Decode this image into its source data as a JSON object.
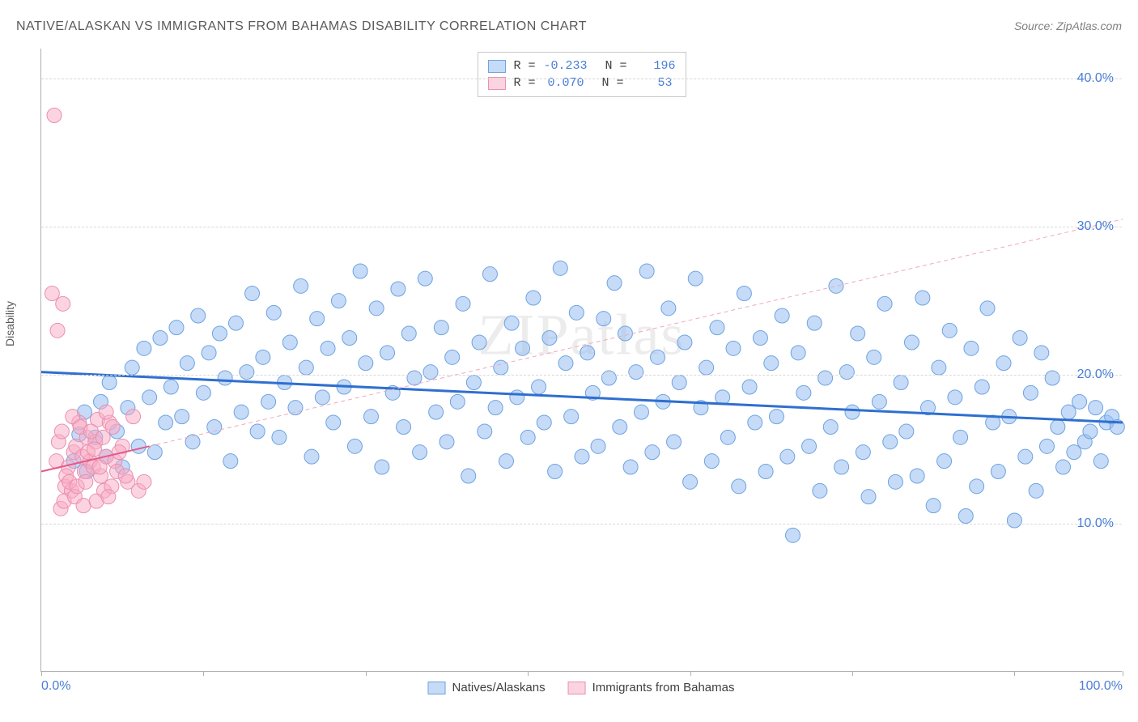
{
  "title": "NATIVE/ALASKAN VS IMMIGRANTS FROM BAHAMAS DISABILITY CORRELATION CHART",
  "source": "Source: ZipAtlas.com",
  "watermark": "ZIPatlas",
  "ylabel": "Disability",
  "chart": {
    "type": "scatter",
    "xlim": [
      0,
      100
    ],
    "ylim": [
      0,
      42
    ],
    "x_ticks": [
      0,
      15,
      30,
      45,
      60,
      75,
      90,
      100
    ],
    "x_tick_labels": {
      "0": "0.0%",
      "100": "100.0%"
    },
    "y_gridlines": [
      10,
      20,
      30,
      40
    ],
    "y_tick_labels": [
      "10.0%",
      "20.0%",
      "30.0%",
      "40.0%"
    ],
    "grid_color": "#d8d8d8",
    "axis_color": "#b0b0b0",
    "tick_label_color": "#4a7dd6",
    "background_color": "#ffffff"
  },
  "series": [
    {
      "name": "Natives/Alaskans",
      "color_fill": "rgba(150,190,240,0.55)",
      "color_stroke": "#6fa3e0",
      "marker_radius": 9,
      "regression": {
        "x1": 0,
        "y1": 20.2,
        "x2": 100,
        "y2": 16.8,
        "color": "#2f6fd0",
        "width": 3,
        "dash": "none"
      },
      "extension": null,
      "R": "-0.233",
      "N": "196",
      "points": [
        [
          3,
          14.2
        ],
        [
          3.5,
          16
        ],
        [
          4,
          17.5
        ],
        [
          4.2,
          13.5
        ],
        [
          5,
          15.8
        ],
        [
          5.5,
          18.2
        ],
        [
          6,
          14.5
        ],
        [
          6.3,
          19.5
        ],
        [
          7,
          16.2
        ],
        [
          7.5,
          13.8
        ],
        [
          8,
          17.8
        ],
        [
          8.4,
          20.5
        ],
        [
          9,
          15.2
        ],
        [
          9.5,
          21.8
        ],
        [
          10,
          18.5
        ],
        [
          10.5,
          14.8
        ],
        [
          11,
          22.5
        ],
        [
          11.5,
          16.8
        ],
        [
          12,
          19.2
        ],
        [
          12.5,
          23.2
        ],
        [
          13,
          17.2
        ],
        [
          13.5,
          20.8
        ],
        [
          14,
          15.5
        ],
        [
          14.5,
          24
        ],
        [
          15,
          18.8
        ],
        [
          15.5,
          21.5
        ],
        [
          16,
          16.5
        ],
        [
          16.5,
          22.8
        ],
        [
          17,
          19.8
        ],
        [
          17.5,
          14.2
        ],
        [
          18,
          23.5
        ],
        [
          18.5,
          17.5
        ],
        [
          19,
          20.2
        ],
        [
          19.5,
          25.5
        ],
        [
          20,
          16.2
        ],
        [
          20.5,
          21.2
        ],
        [
          21,
          18.2
        ],
        [
          21.5,
          24.2
        ],
        [
          22,
          15.8
        ],
        [
          22.5,
          19.5
        ],
        [
          23,
          22.2
        ],
        [
          23.5,
          17.8
        ],
        [
          24,
          26
        ],
        [
          24.5,
          20.5
        ],
        [
          25,
          14.5
        ],
        [
          25.5,
          23.8
        ],
        [
          26,
          18.5
        ],
        [
          26.5,
          21.8
        ],
        [
          27,
          16.8
        ],
        [
          27.5,
          25
        ],
        [
          28,
          19.2
        ],
        [
          28.5,
          22.5
        ],
        [
          29,
          15.2
        ],
        [
          29.5,
          27
        ],
        [
          30,
          20.8
        ],
        [
          30.5,
          17.2
        ],
        [
          31,
          24.5
        ],
        [
          31.5,
          13.8
        ],
        [
          32,
          21.5
        ],
        [
          32.5,
          18.8
        ],
        [
          33,
          25.8
        ],
        [
          33.5,
          16.5
        ],
        [
          34,
          22.8
        ],
        [
          34.5,
          19.8
        ],
        [
          35,
          14.8
        ],
        [
          35.5,
          26.5
        ],
        [
          36,
          20.2
        ],
        [
          36.5,
          17.5
        ],
        [
          37,
          23.2
        ],
        [
          37.5,
          15.5
        ],
        [
          38,
          21.2
        ],
        [
          38.5,
          18.2
        ],
        [
          39,
          24.8
        ],
        [
          39.5,
          13.2
        ],
        [
          40,
          19.5
        ],
        [
          40.5,
          22.2
        ],
        [
          41,
          16.2
        ],
        [
          41.5,
          26.8
        ],
        [
          42,
          17.8
        ],
        [
          42.5,
          20.5
        ],
        [
          43,
          14.2
        ],
        [
          43.5,
          23.5
        ],
        [
          44,
          18.5
        ],
        [
          44.5,
          21.8
        ],
        [
          45,
          15.8
        ],
        [
          45.5,
          25.2
        ],
        [
          46,
          19.2
        ],
        [
          46.5,
          16.8
        ],
        [
          47,
          22.5
        ],
        [
          47.5,
          13.5
        ],
        [
          48,
          27.2
        ],
        [
          48.5,
          20.8
        ],
        [
          49,
          17.2
        ],
        [
          49.5,
          24.2
        ],
        [
          50,
          14.5
        ],
        [
          50.5,
          21.5
        ],
        [
          51,
          18.8
        ],
        [
          51.5,
          15.2
        ],
        [
          52,
          23.8
        ],
        [
          52.5,
          19.8
        ],
        [
          53,
          26.2
        ],
        [
          53.5,
          16.5
        ],
        [
          54,
          22.8
        ],
        [
          54.5,
          13.8
        ],
        [
          55,
          20.2
        ],
        [
          55.5,
          17.5
        ],
        [
          56,
          27
        ],
        [
          56.5,
          14.8
        ],
        [
          57,
          21.2
        ],
        [
          57.5,
          18.2
        ],
        [
          58,
          24.5
        ],
        [
          58.5,
          15.5
        ],
        [
          59,
          19.5
        ],
        [
          59.5,
          22.2
        ],
        [
          60,
          12.8
        ],
        [
          60.5,
          26.5
        ],
        [
          61,
          17.8
        ],
        [
          61.5,
          20.5
        ],
        [
          62,
          14.2
        ],
        [
          62.5,
          23.2
        ],
        [
          63,
          18.5
        ],
        [
          63.5,
          15.8
        ],
        [
          64,
          21.8
        ],
        [
          64.5,
          12.5
        ],
        [
          65,
          25.5
        ],
        [
          65.5,
          19.2
        ],
        [
          66,
          16.8
        ],
        [
          66.5,
          22.5
        ],
        [
          67,
          13.5
        ],
        [
          67.5,
          20.8
        ],
        [
          68,
          17.2
        ],
        [
          68.5,
          24
        ],
        [
          69,
          14.5
        ],
        [
          69.5,
          9.2
        ],
        [
          70,
          21.5
        ],
        [
          70.5,
          18.8
        ],
        [
          71,
          15.2
        ],
        [
          71.5,
          23.5
        ],
        [
          72,
          12.2
        ],
        [
          72.5,
          19.8
        ],
        [
          73,
          16.5
        ],
        [
          73.5,
          26
        ],
        [
          74,
          13.8
        ],
        [
          74.5,
          20.2
        ],
        [
          75,
          17.5
        ],
        [
          75.5,
          22.8
        ],
        [
          76,
          14.8
        ],
        [
          76.5,
          11.8
        ],
        [
          77,
          21.2
        ],
        [
          77.5,
          18.2
        ],
        [
          78,
          24.8
        ],
        [
          78.5,
          15.5
        ],
        [
          79,
          12.8
        ],
        [
          79.5,
          19.5
        ],
        [
          80,
          16.2
        ],
        [
          80.5,
          22.2
        ],
        [
          81,
          13.2
        ],
        [
          81.5,
          25.2
        ],
        [
          82,
          17.8
        ],
        [
          82.5,
          11.2
        ],
        [
          83,
          20.5
        ],
        [
          83.5,
          14.2
        ],
        [
          84,
          23
        ],
        [
          84.5,
          18.5
        ],
        [
          85,
          15.8
        ],
        [
          85.5,
          10.5
        ],
        [
          86,
          21.8
        ],
        [
          86.5,
          12.5
        ],
        [
          87,
          19.2
        ],
        [
          87.5,
          24.5
        ],
        [
          88,
          16.8
        ],
        [
          88.5,
          13.5
        ],
        [
          89,
          20.8
        ],
        [
          89.5,
          17.2
        ],
        [
          90,
          10.2
        ],
        [
          90.5,
          22.5
        ],
        [
          91,
          14.5
        ],
        [
          91.5,
          18.8
        ],
        [
          92,
          12.2
        ],
        [
          92.5,
          21.5
        ],
        [
          93,
          15.2
        ],
        [
          93.5,
          19.8
        ],
        [
          94,
          16.5
        ],
        [
          94.5,
          13.8
        ],
        [
          95,
          17.5
        ],
        [
          95.5,
          14.8
        ],
        [
          96,
          18.2
        ],
        [
          96.5,
          15.5
        ],
        [
          97,
          16.2
        ],
        [
          97.5,
          17.8
        ],
        [
          98,
          14.2
        ],
        [
          98.5,
          16.8
        ],
        [
          99,
          17.2
        ],
        [
          99.5,
          16.5
        ]
      ]
    },
    {
      "name": "Immigrants from Bahamas",
      "color_fill": "rgba(250,170,195,0.5)",
      "color_stroke": "#e890b0",
      "marker_radius": 9,
      "regression": {
        "x1": 0,
        "y1": 13.5,
        "x2": 10,
        "y2": 15.2,
        "color": "#e45a8a",
        "width": 2,
        "dash": "none"
      },
      "extension": {
        "x1": 10,
        "y1": 15.2,
        "x2": 100,
        "y2": 30.5,
        "color": "#f0a8be",
        "width": 1,
        "dash": "5,4"
      },
      "R": "0.070",
      "N": "53",
      "points": [
        [
          1.2,
          37.5
        ],
        [
          1,
          25.5
        ],
        [
          1.5,
          23
        ],
        [
          2,
          24.8
        ],
        [
          1.8,
          11
        ],
        [
          2.2,
          12.5
        ],
        [
          1.4,
          14.2
        ],
        [
          2.5,
          13.8
        ],
        [
          1.6,
          15.5
        ],
        [
          2.8,
          12.2
        ],
        [
          1.9,
          16.2
        ],
        [
          3,
          14.8
        ],
        [
          2.1,
          11.5
        ],
        [
          3.2,
          15.2
        ],
        [
          2.3,
          13.2
        ],
        [
          3.5,
          16.8
        ],
        [
          2.6,
          12.8
        ],
        [
          3.8,
          14.5
        ],
        [
          2.9,
          17.2
        ],
        [
          4,
          13.5
        ],
        [
          3.1,
          11.8
        ],
        [
          4.2,
          15.8
        ],
        [
          3.3,
          12.5
        ],
        [
          4.5,
          14.2
        ],
        [
          3.6,
          16.5
        ],
        [
          4.8,
          13.8
        ],
        [
          3.9,
          11.2
        ],
        [
          5,
          15.5
        ],
        [
          4.1,
          12.8
        ],
        [
          5.2,
          17
        ],
        [
          4.3,
          14.8
        ],
        [
          5.5,
          13.2
        ],
        [
          4.6,
          16.2
        ],
        [
          5.8,
          12.2
        ],
        [
          4.9,
          15
        ],
        [
          6,
          14.5
        ],
        [
          5.1,
          11.5
        ],
        [
          6.3,
          16.8
        ],
        [
          5.4,
          13.8
        ],
        [
          6.5,
          12.5
        ],
        [
          5.7,
          15.8
        ],
        [
          6.8,
          14.2
        ],
        [
          6,
          17.5
        ],
        [
          7,
          13.5
        ],
        [
          6.2,
          11.8
        ],
        [
          7.5,
          15.2
        ],
        [
          6.6,
          16.5
        ],
        [
          8,
          12.8
        ],
        [
          7.2,
          14.8
        ],
        [
          8.5,
          17.2
        ],
        [
          7.8,
          13.2
        ],
        [
          9,
          12.2
        ],
        [
          9.5,
          12.8
        ]
      ]
    }
  ],
  "legend_top": [
    {
      "swatch_fill": "rgba(150,190,240,0.55)",
      "swatch_stroke": "#6fa3e0",
      "R_label": "R =",
      "R": "-0.233",
      "N_label": "N =",
      "N": "196"
    },
    {
      "swatch_fill": "rgba(250,170,195,0.5)",
      "swatch_stroke": "#e890b0",
      "R_label": "R =",
      "R": "0.070",
      "N_label": "N =",
      "N": "53"
    }
  ],
  "legend_bottom": [
    {
      "swatch_fill": "rgba(150,190,240,0.55)",
      "swatch_stroke": "#6fa3e0",
      "label": "Natives/Alaskans"
    },
    {
      "swatch_fill": "rgba(250,170,195,0.5)",
      "swatch_stroke": "#e890b0",
      "label": "Immigrants from Bahamas"
    }
  ]
}
